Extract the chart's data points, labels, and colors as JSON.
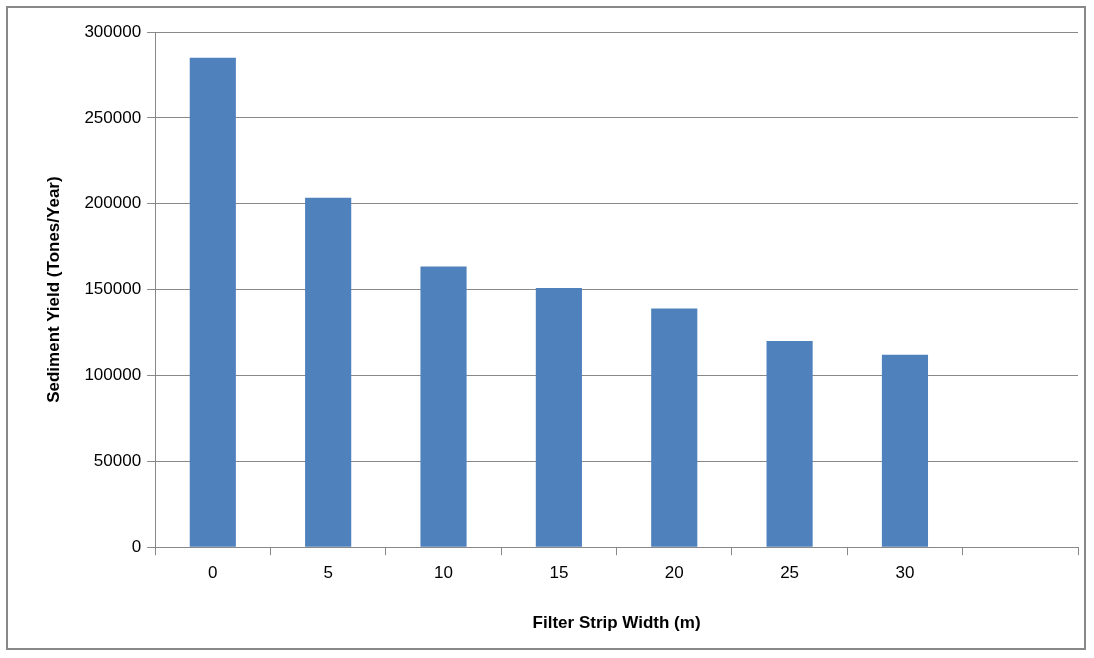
{
  "chart_data": {
    "type": "bar",
    "xlabel": "Filter Strip Width (m)",
    "ylabel": "Sediment Yield (Tones/Year)",
    "categories": [
      "0",
      "5",
      "10",
      "15",
      "20",
      "25",
      "30",
      null
    ],
    "values": [
      285000,
      203500,
      163500,
      151000,
      139000,
      120000,
      112000,
      null
    ],
    "color": "#4f81bd",
    "ylim": [
      0,
      300000
    ],
    "yticks": [
      0,
      50000,
      100000,
      150000,
      200000,
      250000,
      300000
    ],
    "grid": "y",
    "legend": false
  }
}
